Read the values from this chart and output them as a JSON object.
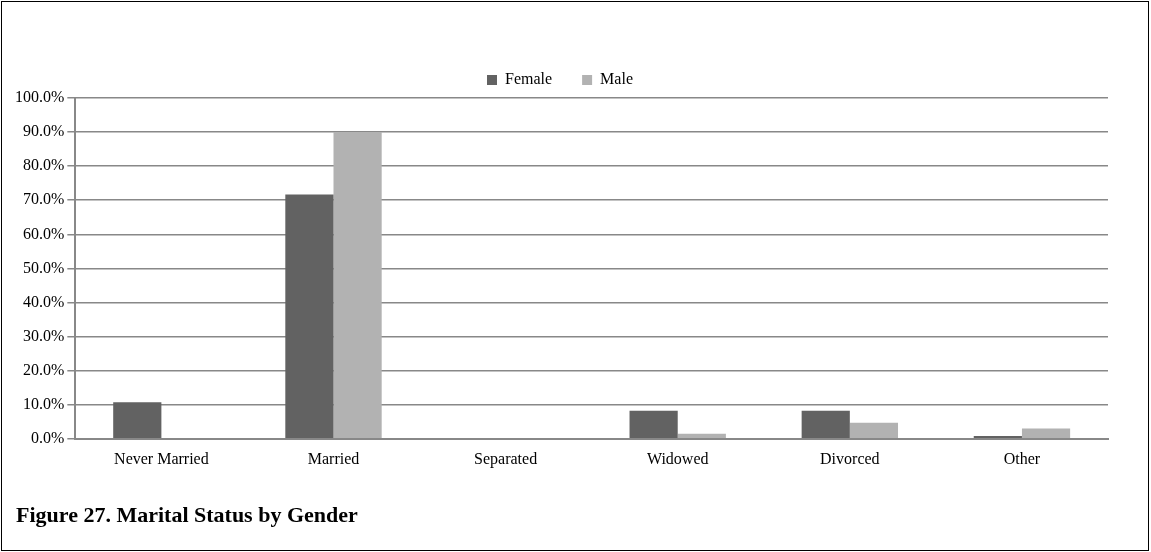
{
  "chart_data": {
    "type": "bar",
    "title": "Figure 27. Marital Status by Gender",
    "categories": [
      "Never Married",
      "Married",
      "Separated",
      "Widowed",
      "Divorced",
      "Other"
    ],
    "series": [
      {
        "name": "Female",
        "color": "#626262",
        "values": [
          10.7,
          71.7,
          0,
          8.2,
          8.2,
          0.8
        ]
      },
      {
        "name": "Male",
        "color": "#b2b2b2",
        "values": [
          0,
          90.0,
          0,
          1.5,
          4.7,
          3.0
        ]
      }
    ],
    "ylim": [
      0,
      100
    ],
    "yticks": [
      {
        "value": 0,
        "label": "0.0%"
      },
      {
        "value": 10,
        "label": "10.0%"
      },
      {
        "value": 20,
        "label": "20.0%"
      },
      {
        "value": 30,
        "label": "30.0%"
      },
      {
        "value": 40,
        "label": "40.0%"
      },
      {
        "value": 50,
        "label": "50.0%"
      },
      {
        "value": 60,
        "label": "60.0%"
      },
      {
        "value": 70,
        "label": "70.0%"
      },
      {
        "value": 80,
        "label": "80.0%"
      },
      {
        "value": 90,
        "label": "90.0%"
      },
      {
        "value": 100,
        "label": "100.0%"
      }
    ],
    "grid": "y",
    "legend": "top"
  }
}
